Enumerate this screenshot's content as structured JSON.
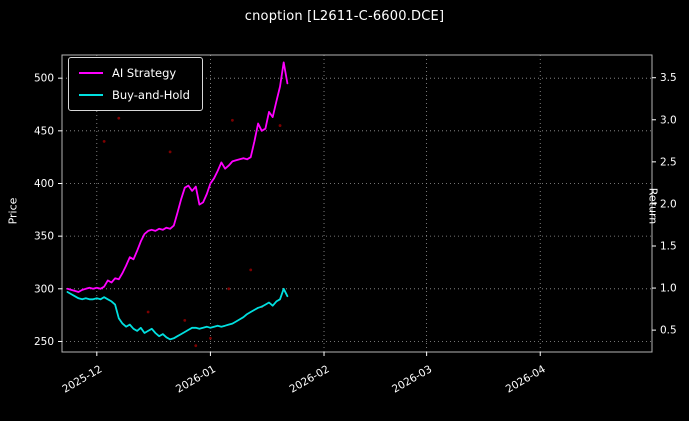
{
  "chart_data": {
    "type": "line",
    "title": "cnoption [L2611-C-6600.DCE]",
    "ylabel_left": "Price",
    "ylabel_right": "Return",
    "background": "#000000",
    "grid": true,
    "legend_position": "upper-left",
    "x_tick_labels": [
      "2025-12",
      "2026-01",
      "2026-02",
      "2026-03",
      "2026-04"
    ],
    "x_tick_days": [
      0,
      31,
      62,
      90,
      121
    ],
    "x_domain_days": [
      -9.5,
      151.5
    ],
    "y_left_ticks": [
      250,
      300,
      350,
      400,
      450,
      500
    ],
    "y_left_domain": [
      240,
      522
    ],
    "y_right_ticks": [
      "0.5",
      "1.0",
      "1.5",
      "2.0",
      "2.5",
      "3.0",
      "3.5"
    ],
    "y_right_domain": [
      0.24,
      3.77
    ],
    "days": [
      -8,
      -7,
      -6,
      -5,
      -4,
      -3,
      -2,
      -1,
      0,
      1,
      2,
      3,
      4,
      5,
      6,
      7,
      8,
      9,
      10,
      11,
      12,
      13,
      14,
      15,
      16,
      17,
      18,
      19,
      20,
      21,
      22,
      23,
      24,
      25,
      26,
      27,
      28,
      29,
      30,
      31,
      32,
      33,
      34,
      35,
      36,
      37,
      38,
      39,
      40,
      41,
      42,
      43,
      44,
      45,
      46,
      47,
      48,
      49,
      50,
      51,
      52
    ],
    "series": [
      {
        "name": "AI Strategy",
        "color": "#ff00ff",
        "values": [
          300,
          299,
          298,
          297,
          299,
          300,
          301,
          300,
          301,
          300,
          302,
          308,
          306,
          310,
          309,
          315,
          322,
          330,
          328,
          336,
          345,
          352,
          355,
          356,
          355,
          357,
          356,
          358,
          357,
          360,
          372,
          385,
          396,
          398,
          393,
          397,
          380,
          382,
          390,
          400,
          405,
          412,
          420,
          414,
          417,
          421,
          422,
          423,
          424,
          423,
          425,
          440,
          457,
          450,
          452,
          468,
          463,
          478,
          492,
          515,
          495
        ]
      },
      {
        "name": "Buy-and-Hold",
        "color": "#00e0e0",
        "values": [
          297,
          295,
          293,
          291,
          290,
          291,
          290,
          290,
          291,
          290,
          292,
          290,
          288,
          285,
          272,
          267,
          264,
          266,
          262,
          260,
          263,
          258,
          260,
          262,
          258,
          255,
          257,
          254,
          252,
          253,
          255,
          257,
          259,
          261,
          263,
          263,
          262,
          263,
          264,
          263,
          264,
          265,
          264,
          265,
          266,
          267,
          269,
          271,
          273,
          276,
          278,
          280,
          282,
          283,
          285,
          287,
          284,
          288,
          290,
          300,
          293
        ]
      }
    ],
    "signals": {
      "color": "#8b0000",
      "points": [
        [
          2,
          440
        ],
        [
          6,
          462
        ],
        [
          20,
          430
        ],
        [
          37,
          460
        ],
        [
          14,
          278
        ],
        [
          27,
          246
        ],
        [
          36,
          300
        ],
        [
          42,
          318
        ],
        [
          45,
          283
        ],
        [
          50,
          455
        ],
        [
          24,
          270
        ],
        [
          31,
          253
        ]
      ]
    }
  }
}
